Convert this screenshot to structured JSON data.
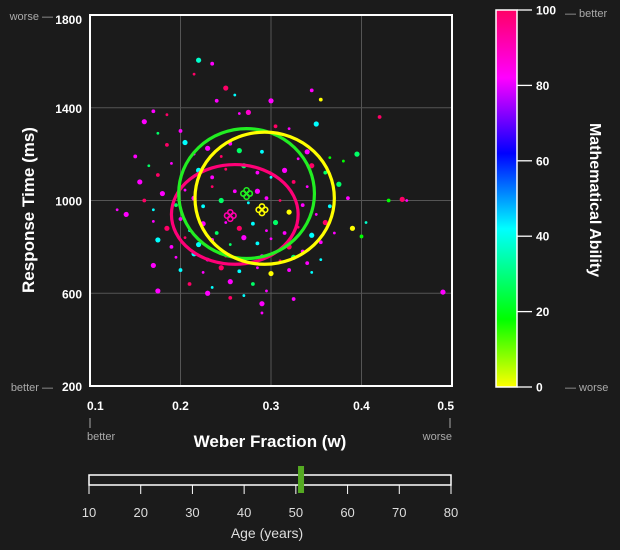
{
  "chart_data": {
    "type": "scatter",
    "xlabel": "Weber Fraction (w)",
    "ylabel": "Response Time (ms)",
    "xlim": [
      0.1,
      0.5
    ],
    "ylim": [
      200,
      1800
    ],
    "x_ticks": [
      "0.1",
      "0.2",
      "0.3",
      "0.4",
      "0.5"
    ],
    "y_ticks": [
      "200",
      "600",
      "1000",
      "1400",
      "1800"
    ],
    "grid": true,
    "x_better": "better",
    "x_worse": "worse",
    "y_worse": "worse —",
    "y_better": "better —",
    "colorbar": {
      "label": "Mathematical Ability",
      "range": [
        0,
        100
      ],
      "ticks": [
        "0",
        "20",
        "40",
        "60",
        "80",
        "100"
      ],
      "better": "— better",
      "worse": "— worse",
      "colors": [
        "#ffff00",
        "#00ff00",
        "#00ffff",
        "#0000ff",
        "#ff00ff",
        "#ff0066"
      ]
    },
    "ellipses": [
      {
        "color": "#ff0077",
        "cx": 0.26,
        "cy": 940,
        "rx": 0.07,
        "ry": 215
      },
      {
        "color": "#22ee22",
        "cx": 0.273,
        "cy": 1030,
        "rx": 0.075,
        "ry": 280
      },
      {
        "color": "#ffff00",
        "cx": 0.293,
        "cy": 1010,
        "rx": 0.077,
        "ry": 285
      }
    ],
    "centroids": [
      {
        "color": "#ff00aa",
        "x": 0.255,
        "y": 935
      },
      {
        "color": "#22ee22",
        "x": 0.273,
        "y": 1030
      },
      {
        "color": "#ffff00",
        "x": 0.29,
        "y": 960
      }
    ],
    "points": [
      {
        "x": 0.22,
        "y": 1605,
        "color": "#00ffcc"
      },
      {
        "x": 0.235,
        "y": 1590,
        "color": "#ff00ff"
      },
      {
        "x": 0.215,
        "y": 1545,
        "color": "#ff0066"
      },
      {
        "x": 0.25,
        "y": 1485,
        "color": "#ff0066"
      },
      {
        "x": 0.24,
        "y": 1430,
        "color": "#ff00ff"
      },
      {
        "x": 0.26,
        "y": 1455,
        "color": "#00ffff"
      },
      {
        "x": 0.3,
        "y": 1430,
        "color": "#ff00ff"
      },
      {
        "x": 0.355,
        "y": 1435,
        "color": "#ffff00"
      },
      {
        "x": 0.265,
        "y": 1375,
        "color": "#ff00ff"
      },
      {
        "x": 0.275,
        "y": 1380,
        "color": "#ff00cc"
      },
      {
        "x": 0.305,
        "y": 1320,
        "color": "#ff0066"
      },
      {
        "x": 0.32,
        "y": 1310,
        "color": "#ff00ff"
      },
      {
        "x": 0.35,
        "y": 1330,
        "color": "#00ffff"
      },
      {
        "x": 0.17,
        "y": 1385,
        "color": "#ff00ff"
      },
      {
        "x": 0.185,
        "y": 1370,
        "color": "#ff0066"
      },
      {
        "x": 0.16,
        "y": 1340,
        "color": "#ff00ff"
      },
      {
        "x": 0.2,
        "y": 1300,
        "color": "#ff00ff"
      },
      {
        "x": 0.175,
        "y": 1290,
        "color": "#00ff66"
      },
      {
        "x": 0.205,
        "y": 1250,
        "color": "#00ffff"
      },
      {
        "x": 0.185,
        "y": 1240,
        "color": "#ff0066"
      },
      {
        "x": 0.215,
        "y": 1200,
        "color": "#ff00ff"
      },
      {
        "x": 0.23,
        "y": 1225,
        "color": "#ff00ff"
      },
      {
        "x": 0.255,
        "y": 1245,
        "color": "#ff00ff"
      },
      {
        "x": 0.245,
        "y": 1190,
        "color": "#ff0066"
      },
      {
        "x": 0.265,
        "y": 1215,
        "color": "#00ff66"
      },
      {
        "x": 0.29,
        "y": 1210,
        "color": "#00ffff"
      },
      {
        "x": 0.33,
        "y": 1180,
        "color": "#ff00ff"
      },
      {
        "x": 0.345,
        "y": 1150,
        "color": "#ff0066"
      },
      {
        "x": 0.36,
        "y": 1120,
        "color": "#00ff66"
      },
      {
        "x": 0.365,
        "y": 1185,
        "color": "#00ff00"
      },
      {
        "x": 0.34,
        "y": 1210,
        "color": "#ff00ff"
      },
      {
        "x": 0.15,
        "y": 1190,
        "color": "#ff00ff"
      },
      {
        "x": 0.165,
        "y": 1150,
        "color": "#00ff66"
      },
      {
        "x": 0.155,
        "y": 1080,
        "color": "#ff00ff"
      },
      {
        "x": 0.175,
        "y": 1110,
        "color": "#ff0066"
      },
      {
        "x": 0.19,
        "y": 1160,
        "color": "#ff00ff"
      },
      {
        "x": 0.22,
        "y": 1130,
        "color": "#00ffff"
      },
      {
        "x": 0.235,
        "y": 1100,
        "color": "#ff00ff"
      },
      {
        "x": 0.25,
        "y": 1135,
        "color": "#ff0066"
      },
      {
        "x": 0.27,
        "y": 1150,
        "color": "#00ff66"
      },
      {
        "x": 0.285,
        "y": 1120,
        "color": "#ff00ff"
      },
      {
        "x": 0.3,
        "y": 1100,
        "color": "#00ffff"
      },
      {
        "x": 0.315,
        "y": 1130,
        "color": "#ff00ff"
      },
      {
        "x": 0.325,
        "y": 1080,
        "color": "#ff0066"
      },
      {
        "x": 0.34,
        "y": 1060,
        "color": "#ff00ff"
      },
      {
        "x": 0.375,
        "y": 1070,
        "color": "#00ff66"
      },
      {
        "x": 0.385,
        "y": 1010,
        "color": "#ff00ff"
      },
      {
        "x": 0.38,
        "y": 1170,
        "color": "#00ff00"
      },
      {
        "x": 0.395,
        "y": 1200,
        "color": "#00ff66"
      },
      {
        "x": 0.42,
        "y": 1360,
        "color": "#ff0066"
      },
      {
        "x": 0.405,
        "y": 905,
        "color": "#00ffcc"
      },
      {
        "x": 0.445,
        "y": 1005,
        "color": "#ff0066"
      },
      {
        "x": 0.43,
        "y": 1000,
        "color": "#00ff00"
      },
      {
        "x": 0.45,
        "y": 1000,
        "color": "#ff00ff"
      },
      {
        "x": 0.39,
        "y": 880,
        "color": "#ffff00"
      },
      {
        "x": 0.4,
        "y": 845,
        "color": "#00ff00"
      },
      {
        "x": 0.13,
        "y": 960,
        "color": "#ff00ff"
      },
      {
        "x": 0.14,
        "y": 940,
        "color": "#ff00ff"
      },
      {
        "x": 0.16,
        "y": 1000,
        "color": "#ff0066"
      },
      {
        "x": 0.17,
        "y": 960,
        "color": "#00ffff"
      },
      {
        "x": 0.18,
        "y": 1030,
        "color": "#ff00ff"
      },
      {
        "x": 0.195,
        "y": 980,
        "color": "#00ff66"
      },
      {
        "x": 0.205,
        "y": 1045,
        "color": "#ff00ff"
      },
      {
        "x": 0.215,
        "y": 1010,
        "color": "#ff00ff"
      },
      {
        "x": 0.225,
        "y": 975,
        "color": "#00ffff"
      },
      {
        "x": 0.235,
        "y": 1060,
        "color": "#ff0066"
      },
      {
        "x": 0.245,
        "y": 1000,
        "color": "#00ff66"
      },
      {
        "x": 0.26,
        "y": 1040,
        "color": "#ff00ff"
      },
      {
        "x": 0.275,
        "y": 990,
        "color": "#00ffff"
      },
      {
        "x": 0.285,
        "y": 1040,
        "color": "#ff00ff"
      },
      {
        "x": 0.295,
        "y": 1010,
        "color": "#ff00ff"
      },
      {
        "x": 0.31,
        "y": 1000,
        "color": "#ff0066"
      },
      {
        "x": 0.32,
        "y": 950,
        "color": "#ffff00"
      },
      {
        "x": 0.335,
        "y": 980,
        "color": "#ff00ff"
      },
      {
        "x": 0.35,
        "y": 940,
        "color": "#ff00ff"
      },
      {
        "x": 0.36,
        "y": 905,
        "color": "#ff0066"
      },
      {
        "x": 0.365,
        "y": 975,
        "color": "#00ffff"
      },
      {
        "x": 0.17,
        "y": 910,
        "color": "#ff00ff"
      },
      {
        "x": 0.185,
        "y": 880,
        "color": "#ff0066"
      },
      {
        "x": 0.2,
        "y": 920,
        "color": "#ff00ff"
      },
      {
        "x": 0.21,
        "y": 870,
        "color": "#00ffff"
      },
      {
        "x": 0.225,
        "y": 900,
        "color": "#ff00ff"
      },
      {
        "x": 0.24,
        "y": 860,
        "color": "#00ff66"
      },
      {
        "x": 0.25,
        "y": 905,
        "color": "#ff00ff"
      },
      {
        "x": 0.265,
        "y": 880,
        "color": "#ff0066"
      },
      {
        "x": 0.28,
        "y": 900,
        "color": "#00ffff"
      },
      {
        "x": 0.295,
        "y": 870,
        "color": "#ff00ff"
      },
      {
        "x": 0.305,
        "y": 905,
        "color": "#00ff66"
      },
      {
        "x": 0.315,
        "y": 860,
        "color": "#ff00ff"
      },
      {
        "x": 0.33,
        "y": 885,
        "color": "#ff0066"
      },
      {
        "x": 0.345,
        "y": 850,
        "color": "#00ffff"
      },
      {
        "x": 0.355,
        "y": 820,
        "color": "#ff00ff"
      },
      {
        "x": 0.37,
        "y": 860,
        "color": "#ff00ff"
      },
      {
        "x": 0.175,
        "y": 830,
        "color": "#00ffff"
      },
      {
        "x": 0.19,
        "y": 800,
        "color": "#ff00ff"
      },
      {
        "x": 0.205,
        "y": 840,
        "color": "#ff0066"
      },
      {
        "x": 0.22,
        "y": 810,
        "color": "#00ffff"
      },
      {
        "x": 0.235,
        "y": 830,
        "color": "#ff00ff"
      },
      {
        "x": 0.255,
        "y": 810,
        "color": "#00ff66"
      },
      {
        "x": 0.27,
        "y": 840,
        "color": "#ff00ff"
      },
      {
        "x": 0.285,
        "y": 815,
        "color": "#00ffff"
      },
      {
        "x": 0.3,
        "y": 835,
        "color": "#ff00ff"
      },
      {
        "x": 0.32,
        "y": 800,
        "color": "#ff0066"
      },
      {
        "x": 0.335,
        "y": 780,
        "color": "#ff00ff"
      },
      {
        "x": 0.195,
        "y": 755,
        "color": "#ff00ff"
      },
      {
        "x": 0.215,
        "y": 770,
        "color": "#00ffff"
      },
      {
        "x": 0.23,
        "y": 745,
        "color": "#ff00ff"
      },
      {
        "x": 0.25,
        "y": 760,
        "color": "#ff0066"
      },
      {
        "x": 0.27,
        "y": 745,
        "color": "#00ffff"
      },
      {
        "x": 0.29,
        "y": 760,
        "color": "#ff00ff"
      },
      {
        "x": 0.31,
        "y": 740,
        "color": "#ff0066"
      },
      {
        "x": 0.325,
        "y": 755,
        "color": "#00ff66"
      },
      {
        "x": 0.34,
        "y": 730,
        "color": "#ff00ff"
      },
      {
        "x": 0.355,
        "y": 745,
        "color": "#00ffff"
      },
      {
        "x": 0.17,
        "y": 720,
        "color": "#ff00ff"
      },
      {
        "x": 0.2,
        "y": 700,
        "color": "#00ffff"
      },
      {
        "x": 0.225,
        "y": 690,
        "color": "#ff00ff"
      },
      {
        "x": 0.245,
        "y": 710,
        "color": "#ff0066"
      },
      {
        "x": 0.265,
        "y": 695,
        "color": "#00ffff"
      },
      {
        "x": 0.285,
        "y": 710,
        "color": "#ff00ff"
      },
      {
        "x": 0.3,
        "y": 685,
        "color": "#ffff00"
      },
      {
        "x": 0.32,
        "y": 700,
        "color": "#ff00ff"
      },
      {
        "x": 0.345,
        "y": 690,
        "color": "#00ffff"
      },
      {
        "x": 0.175,
        "y": 610,
        "color": "#ff00ff"
      },
      {
        "x": 0.21,
        "y": 640,
        "color": "#ff0066"
      },
      {
        "x": 0.235,
        "y": 625,
        "color": "#00ffff"
      },
      {
        "x": 0.255,
        "y": 650,
        "color": "#ff00ff"
      },
      {
        "x": 0.28,
        "y": 640,
        "color": "#00ff66"
      },
      {
        "x": 0.295,
        "y": 610,
        "color": "#ff00ff"
      },
      {
        "x": 0.23,
        "y": 600,
        "color": "#ff00ff"
      },
      {
        "x": 0.255,
        "y": 580,
        "color": "#ff0066"
      },
      {
        "x": 0.27,
        "y": 590,
        "color": "#00ffff"
      },
      {
        "x": 0.29,
        "y": 555,
        "color": "#ff00ff"
      },
      {
        "x": 0.325,
        "y": 575,
        "color": "#ff00ff"
      },
      {
        "x": 0.29,
        "y": 515,
        "color": "#ff00ff"
      },
      {
        "x": 0.49,
        "y": 605,
        "color": "#ff00ff"
      },
      {
        "x": 0.345,
        "y": 1475,
        "color": "#ff00ff"
      }
    ]
  },
  "age_slider": {
    "label": "Age (years)",
    "ticks": [
      "10",
      "20",
      "30",
      "40",
      "50",
      "60",
      "70",
      "80"
    ],
    "range": [
      10,
      80
    ],
    "value": 51
  }
}
